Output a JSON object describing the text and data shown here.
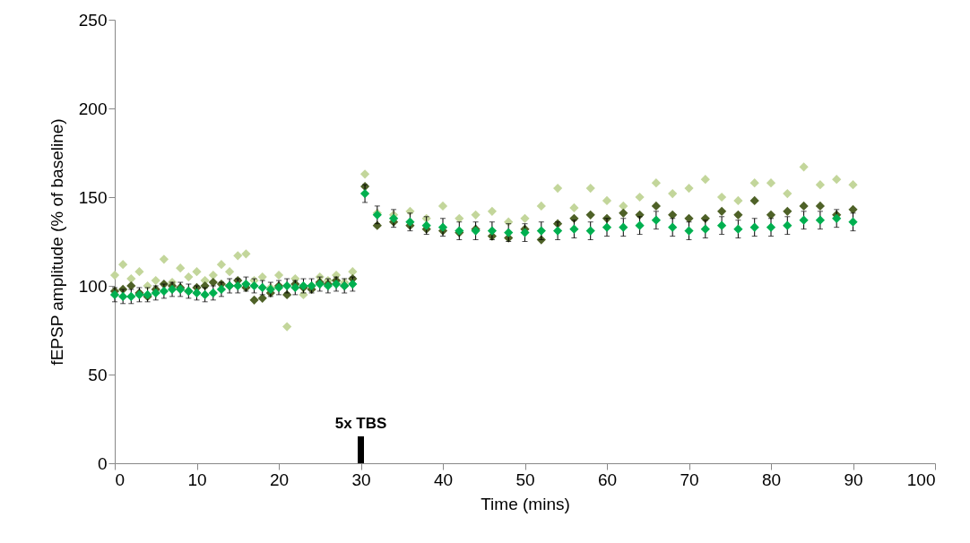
{
  "chart_data": {
    "type": "scatter",
    "xlabel": "Time (mins)",
    "ylabel": "fEPSP amplitude (% of baseline)",
    "x": [
      0,
      1,
      2,
      3,
      4,
      5,
      6,
      7,
      8,
      9,
      10,
      11,
      12,
      13,
      14,
      15,
      16,
      17,
      18,
      19,
      20,
      21,
      22,
      23,
      24,
      25,
      26,
      27,
      28,
      29,
      30.5,
      32,
      34,
      36,
      38,
      40,
      42,
      44,
      46,
      48,
      50,
      52,
      54,
      56,
      58,
      60,
      62,
      64,
      66,
      68,
      70,
      72,
      74,
      76,
      78,
      80,
      82,
      84,
      86,
      88,
      90
    ],
    "series": [
      {
        "color": "#c3d69b",
        "values": [
          106,
          112,
          104,
          108,
          100,
          103,
          115,
          102,
          110,
          105,
          108,
          103,
          106,
          112,
          108,
          117,
          118,
          103,
          105,
          99,
          106,
          77,
          104,
          95,
          100,
          105,
          103,
          106,
          102,
          108,
          163,
          141,
          140,
          142,
          138,
          145,
          138,
          140,
          142,
          136,
          138,
          145,
          155,
          144,
          155,
          148,
          145,
          150,
          158,
          152,
          155,
          160,
          150,
          148,
          158,
          158,
          152,
          167,
          157,
          160,
          157
        ]
      },
      {
        "color": "#4f6228",
        "values": [
          97,
          98,
          100,
          96,
          94,
          98,
          101,
          100,
          99,
          97,
          99,
          100,
          102,
          101,
          100,
          103,
          99,
          92,
          93,
          96,
          100,
          95,
          101,
          99,
          98,
          102,
          101,
          103,
          100,
          104,
          156,
          134,
          136,
          134,
          132,
          131,
          130,
          132,
          128,
          127,
          132,
          126,
          135,
          138,
          140,
          138,
          141,
          140,
          145,
          140,
          138,
          138,
          142,
          140,
          148,
          140,
          142,
          145,
          145,
          140,
          143
        ]
      },
      {
        "color": "#00b050",
        "values": [
          95,
          94,
          94,
          95,
          95,
          96,
          97,
          98,
          98,
          97,
          96,
          95,
          96,
          98,
          100,
          100,
          101,
          100,
          99,
          98,
          99,
          100,
          99,
          100,
          100,
          101,
          100,
          101,
          100,
          101,
          152,
          140,
          138,
          136,
          134,
          133,
          131,
          131,
          131,
          130,
          130,
          131,
          131,
          132,
          131,
          133,
          133,
          134,
          137,
          133,
          131,
          132,
          134,
          132,
          133,
          133,
          134,
          137,
          137,
          138,
          136
        ],
        "errors": [
          4,
          4,
          4,
          4,
          4,
          4,
          4,
          4,
          4,
          4,
          4,
          4,
          4,
          4,
          4,
          4,
          4,
          4,
          4,
          4,
          4,
          4,
          4,
          4,
          4,
          4,
          4,
          4,
          4,
          4,
          5,
          5,
          5,
          5,
          5,
          5,
          5,
          5,
          5,
          5,
          5,
          5,
          5,
          5,
          5,
          5,
          5,
          5,
          5,
          5,
          5,
          5,
          5,
          5,
          5,
          5,
          5,
          5,
          5,
          5,
          5
        ]
      }
    ],
    "xlim": [
      0,
      100
    ],
    "xticks": [
      0,
      10,
      20,
      30,
      40,
      50,
      60,
      70,
      80,
      90,
      100
    ],
    "ylim": [
      0,
      250
    ],
    "yticks": [
      0,
      50,
      100,
      150,
      200,
      250
    ],
    "marker": "diamond",
    "grid": false,
    "ref_lines": [
      {
        "axis": "x",
        "value": 30,
        "label": "5x TBS"
      }
    ]
  }
}
